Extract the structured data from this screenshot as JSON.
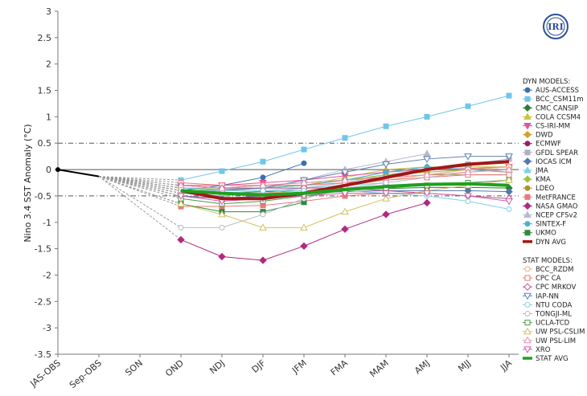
{
  "logo_text": "IRI",
  "chart_data": {
    "type": "line",
    "ylabel": "Nino 3.4 SST Anomaly (°C)",
    "categories": [
      "JAS-OBS",
      "Sep-OBS",
      "SON",
      "OND",
      "NDJ",
      "DJF",
      "JFM",
      "FMA",
      "MAM",
      "AMJ",
      "MJJ",
      "JJA"
    ],
    "ylim": [
      -3.5,
      3
    ],
    "yticks": [
      "3",
      "2.5",
      "2",
      "1.5",
      "1",
      "0.5",
      "0",
      "-0.5",
      "-1",
      "-1.5",
      "-2",
      "-2.5",
      "-3",
      "-3.5"
    ],
    "threshold_lines": [
      0.5,
      -0.5
    ],
    "observed": {
      "x": [
        0,
        1
      ],
      "values": [
        0.0,
        -0.13
      ],
      "color": "#000000"
    },
    "legend_dyn_title": "DYN MODELS:",
    "legend_stat_title": "STAT MODELS:",
    "dyn_models": [
      {
        "name": "AUS-ACCESS",
        "color": "#3a6fb0",
        "marker": "circle",
        "values": [
          -0.4,
          -0.3,
          -0.15,
          0.12
        ]
      },
      {
        "name": "BCC_CSM11m",
        "color": "#6fc6ea",
        "marker": "square",
        "values": [
          -0.2,
          -0.03,
          0.15,
          0.38,
          0.6,
          0.82,
          1.0,
          1.2,
          1.4
        ]
      },
      {
        "name": "CMC CANSIP",
        "color": "#2e7d32",
        "marker": "diamond",
        "values": [
          -0.45,
          -0.45,
          -0.42,
          -0.4,
          -0.38,
          -0.36,
          -0.34,
          -0.34,
          -0.35
        ]
      },
      {
        "name": "COLA CCSM4",
        "color": "#c9c43a",
        "marker": "triangle",
        "values": [
          -0.35,
          -0.35,
          -0.3,
          -0.3,
          -0.15,
          0.0,
          0.05,
          0.05,
          0.05
        ]
      },
      {
        "name": "CS-IRI-MM",
        "color": "#e8509a",
        "marker": "triangle-down",
        "values": [
          -0.3,
          -0.3,
          -0.25,
          -0.2,
          -0.12,
          -0.05,
          0.0,
          0.02,
          0.05
        ]
      },
      {
        "name": "DWD",
        "color": "#d4a030",
        "marker": "diamond",
        "values": [
          -0.35,
          -0.4,
          -0.35,
          -0.3,
          -0.2,
          -0.1,
          -0.05,
          0.0,
          0.05
        ]
      },
      {
        "name": "ECMWF",
        "color": "#a0186a",
        "marker": "circle",
        "values": [
          -0.5,
          -0.55,
          -0.5,
          -0.45,
          -0.4,
          -0.3
        ]
      },
      {
        "name": "GFDL SPEAR",
        "color": "#b0b0c0",
        "marker": "square",
        "values": [
          -0.45,
          -0.5,
          -0.45,
          -0.35,
          -0.25,
          -0.1,
          0.0,
          0.1,
          0.2
        ]
      },
      {
        "name": "IOCAS ICM",
        "color": "#5577aa",
        "marker": "diamond",
        "values": [
          -0.5,
          -0.55,
          -0.5,
          -0.45,
          -0.42,
          -0.4,
          -0.4,
          -0.4,
          -0.42
        ]
      },
      {
        "name": "JMA",
        "color": "#7fd1e8",
        "marker": "triangle",
        "values": [
          -0.45,
          -0.45,
          -0.4,
          -0.35,
          -0.3,
          -0.25
        ]
      },
      {
        "name": "KMA",
        "color": "#9fc33a",
        "marker": "diamond",
        "values": [
          -0.4,
          -0.4,
          -0.35,
          -0.3,
          -0.2,
          -0.1,
          -0.05,
          0.0,
          -0.05
        ]
      },
      {
        "name": "LDEO",
        "color": "#b09030",
        "marker": "circle",
        "values": [
          -0.3,
          -0.35,
          -0.3,
          -0.25,
          -0.2,
          -0.15,
          -0.1,
          -0.1,
          -0.1
        ]
      },
      {
        "name": "MetFRANCE",
        "color": "#e87a7a",
        "marker": "square",
        "values": [
          -0.7,
          -0.7,
          -0.68,
          -0.6,
          -0.5,
          -0.45
        ]
      },
      {
        "name": "NASA GMAO",
        "color": "#b02a80",
        "marker": "diamond",
        "values": [
          -1.33,
          -1.65,
          -1.72,
          -1.45,
          -1.13,
          -0.85,
          -0.63
        ]
      },
      {
        "name": "NCEP CFSv2",
        "color": "#b8b8d0",
        "marker": "triangle",
        "values": [
          -0.4,
          -0.4,
          -0.35,
          -0.2,
          0.0,
          0.15,
          0.3
        ]
      },
      {
        "name": "SINTEX-F",
        "color": "#4ab0d0",
        "marker": "circle",
        "values": [
          -0.35,
          -0.38,
          -0.35,
          -0.3,
          -0.2,
          -0.05,
          0.05,
          0.0,
          -0.05
        ]
      },
      {
        "name": "UKMO",
        "color": "#2e8b3a",
        "marker": "square",
        "values": [
          -0.65,
          -0.8,
          -0.8,
          -0.62
        ]
      },
      {
        "name": "DYN AVG",
        "color": "#a01818",
        "marker": "none",
        "values": [
          -0.4,
          -0.55,
          -0.55,
          -0.45,
          -0.3,
          -0.15,
          0.0,
          0.1,
          0.15
        ]
      }
    ],
    "stat_models": [
      {
        "name": "BCC_RZDM",
        "color": "#e8b07a",
        "marker": "circle-open",
        "values": [
          -0.4,
          -0.45,
          -0.45,
          -0.4,
          -0.3,
          -0.2,
          -0.1,
          0.0,
          0.05
        ]
      },
      {
        "name": "CPC CA",
        "color": "#e87a7a",
        "marker": "square-open",
        "values": [
          -0.25,
          -0.3,
          -0.3,
          -0.3,
          -0.25,
          -0.2,
          -0.15,
          -0.1,
          -0.1
        ]
      },
      {
        "name": "CPC MRKOV",
        "color": "#c0508a",
        "marker": "diamond-open",
        "values": [
          -0.3,
          -0.35,
          -0.35,
          -0.35,
          -0.35,
          -0.4,
          -0.45,
          -0.5,
          -0.55
        ]
      },
      {
        "name": "IAP-NN",
        "color": "#6080b0",
        "marker": "triangle-down-open",
        "values": [
          -0.35,
          -0.4,
          -0.35,
          -0.2,
          -0.05,
          0.1,
          0.2,
          0.25,
          0.25
        ]
      },
      {
        "name": "NTU CODA",
        "color": "#7fd1e8",
        "marker": "circle-open",
        "values": [
          -0.35,
          -0.4,
          -0.4,
          -0.4,
          -0.4,
          -0.45,
          -0.5,
          -0.6,
          -0.75
        ]
      },
      {
        "name": "TONGJI-ML",
        "color": "#b8b8c8",
        "marker": "circle-open",
        "values": [
          -1.1,
          -1.1,
          -0.85,
          -0.55,
          -0.35,
          -0.25,
          -0.15,
          -0.05,
          0.0
        ]
      },
      {
        "name": "UCLA-TCD",
        "color": "#4a9a4a",
        "marker": "square-open",
        "values": [
          -0.55,
          -0.65,
          -0.6,
          -0.5,
          -0.4,
          -0.35,
          -0.3,
          -0.25,
          -0.2
        ]
      },
      {
        "name": "UW PSL-CSLIM",
        "color": "#d4c060",
        "marker": "triangle-open",
        "values": [
          -0.65,
          -0.85,
          -1.1,
          -1.1,
          -0.8,
          -0.55,
          -0.4,
          -0.3,
          -0.2
        ]
      },
      {
        "name": "UW PSL-LIM",
        "color": "#e890b0",
        "marker": "triangle-open",
        "values": [
          -0.3,
          -0.35,
          -0.3,
          -0.25,
          -0.2,
          -0.15,
          -0.1,
          -0.05,
          0.0
        ]
      },
      {
        "name": "XRO",
        "color": "#d060a8",
        "marker": "triangle-down-open",
        "values": [
          -0.5,
          -0.6,
          -0.55,
          -0.5,
          -0.45,
          -0.45,
          -0.45,
          -0.5,
          -0.6
        ]
      },
      {
        "name": "STAT AVG",
        "color": "#1ea01e",
        "marker": "none",
        "values": [
          -0.4,
          -0.45,
          -0.48,
          -0.45,
          -0.38,
          -0.32,
          -0.28,
          -0.27,
          -0.3
        ]
      }
    ]
  }
}
